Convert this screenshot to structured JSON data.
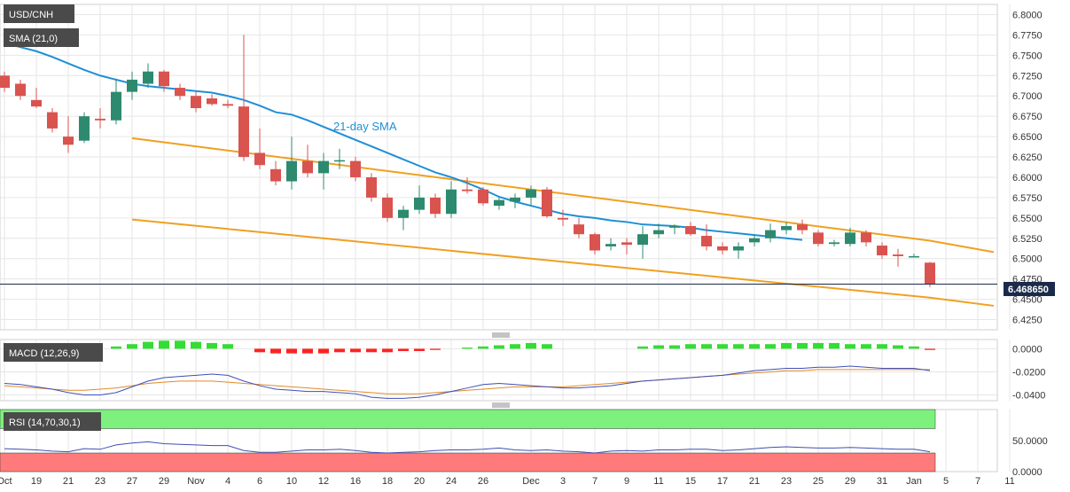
{
  "chart_data": {
    "type": "candlestick",
    "title": "USD/CNH",
    "last_price": "6.468650",
    "colors": {
      "up": "#2d8a6f",
      "down": "#d9534f",
      "sma": "#1f8fd6",
      "channel": "#f0a020",
      "macd_line": "#3f4fb5",
      "signal_line": "#e08a2a",
      "hist_pos": "#33dd33",
      "hist_neg": "#ff2222",
      "rsi_line": "#3f4fb5",
      "rsi_green": "#7ef07e",
      "rsi_red": "#ff7b7b",
      "grid": "#e6e6e6",
      "label_bg": "#4a4a4a",
      "price_bg": "#1b2a4a"
    },
    "price_panel": {
      "legend_symbol": "USD/CNH",
      "legend_sma": "SMA (21,0)",
      "annotation": "21-day SMA",
      "ylim": [
        6.4125,
        6.8125
      ],
      "y_ticks": [
        "6.8000",
        "6.7750",
        "6.7500",
        "6.7250",
        "6.7000",
        "6.6750",
        "6.6500",
        "6.6250",
        "6.6000",
        "6.5750",
        "6.5500",
        "6.5250",
        "6.5000",
        "6.4750",
        "6.4500",
        "6.4250"
      ],
      "candles": [
        {
          "o": 6.725,
          "h": 6.73,
          "l": 6.705,
          "c": 6.71
        },
        {
          "o": 6.715,
          "h": 6.72,
          "l": 6.695,
          "c": 6.7
        },
        {
          "o": 6.695,
          "h": 6.71,
          "l": 6.685,
          "c": 6.687
        },
        {
          "o": 6.68,
          "h": 6.685,
          "l": 6.655,
          "c": 6.66
        },
        {
          "o": 6.65,
          "h": 6.675,
          "l": 6.63,
          "c": 6.64
        },
        {
          "o": 6.645,
          "h": 6.68,
          "l": 6.642,
          "c": 6.675
        },
        {
          "o": 6.672,
          "h": 6.685,
          "l": 6.66,
          "c": 6.67
        },
        {
          "o": 6.67,
          "h": 6.72,
          "l": 6.665,
          "c": 6.705
        },
        {
          "o": 6.705,
          "h": 6.73,
          "l": 6.695,
          "c": 6.72
        },
        {
          "o": 6.715,
          "h": 6.74,
          "l": 6.71,
          "c": 6.73
        },
        {
          "o": 6.73,
          "h": 6.732,
          "l": 6.705,
          "c": 6.712
        },
        {
          "o": 6.71,
          "h": 6.715,
          "l": 6.695,
          "c": 6.7
        },
        {
          "o": 6.7,
          "h": 6.705,
          "l": 6.68,
          "c": 6.685
        },
        {
          "o": 6.697,
          "h": 6.702,
          "l": 6.688,
          "c": 6.69
        },
        {
          "o": 6.69,
          "h": 6.695,
          "l": 6.685,
          "c": 6.688
        },
        {
          "o": 6.687,
          "h": 6.775,
          "l": 6.62,
          "c": 6.625
        },
        {
          "o": 6.63,
          "h": 6.66,
          "l": 6.61,
          "c": 6.615
        },
        {
          "o": 6.61,
          "h": 6.62,
          "l": 6.59,
          "c": 6.595
        },
        {
          "o": 6.595,
          "h": 6.65,
          "l": 6.585,
          "c": 6.62
        },
        {
          "o": 6.62,
          "h": 6.64,
          "l": 6.6,
          "c": 6.605
        },
        {
          "o": 6.605,
          "h": 6.63,
          "l": 6.585,
          "c": 6.62
        },
        {
          "o": 6.62,
          "h": 6.635,
          "l": 6.61,
          "c": 6.621
        },
        {
          "o": 6.62,
          "h": 6.625,
          "l": 6.595,
          "c": 6.6
        },
        {
          "o": 6.6,
          "h": 6.605,
          "l": 6.57,
          "c": 6.575
        },
        {
          "o": 6.575,
          "h": 6.58,
          "l": 6.545,
          "c": 6.55
        },
        {
          "o": 6.55,
          "h": 6.565,
          "l": 6.535,
          "c": 6.56
        },
        {
          "o": 6.56,
          "h": 6.59,
          "l": 6.555,
          "c": 6.575
        },
        {
          "o": 6.575,
          "h": 6.58,
          "l": 6.55,
          "c": 6.555
        },
        {
          "o": 6.555,
          "h": 6.595,
          "l": 6.55,
          "c": 6.585
        },
        {
          "o": 6.585,
          "h": 6.6,
          "l": 6.58,
          "c": 6.583
        },
        {
          "o": 6.585,
          "h": 6.588,
          "l": 6.565,
          "c": 6.568
        },
        {
          "o": 6.565,
          "h": 6.575,
          "l": 6.56,
          "c": 6.572
        },
        {
          "o": 6.57,
          "h": 6.58,
          "l": 6.562,
          "c": 6.575
        },
        {
          "o": 6.575,
          "h": 6.59,
          "l": 6.565,
          "c": 6.585
        },
        {
          "o": 6.585,
          "h": 6.588,
          "l": 6.55,
          "c": 6.552
        },
        {
          "o": 6.55,
          "h": 6.56,
          "l": 6.54,
          "c": 6.548
        },
        {
          "o": 6.542,
          "h": 6.55,
          "l": 6.525,
          "c": 6.53
        },
        {
          "o": 6.53,
          "h": 6.532,
          "l": 6.505,
          "c": 6.51
        },
        {
          "o": 6.515,
          "h": 6.525,
          "l": 6.51,
          "c": 6.518
        },
        {
          "o": 6.52,
          "h": 6.525,
          "l": 6.505,
          "c": 6.517
        },
        {
          "o": 6.517,
          "h": 6.54,
          "l": 6.5,
          "c": 6.53
        },
        {
          "o": 6.53,
          "h": 6.543,
          "l": 6.525,
          "c": 6.535
        },
        {
          "o": 6.538,
          "h": 6.542,
          "l": 6.53,
          "c": 6.54
        },
        {
          "o": 6.54,
          "h": 6.545,
          "l": 6.528,
          "c": 6.53
        },
        {
          "o": 6.528,
          "h": 6.542,
          "l": 6.51,
          "c": 6.515
        },
        {
          "o": 6.515,
          "h": 6.52,
          "l": 6.505,
          "c": 6.51
        },
        {
          "o": 6.51,
          "h": 6.52,
          "l": 6.5,
          "c": 6.515
        },
        {
          "o": 6.52,
          "h": 6.53,
          "l": 6.515,
          "c": 6.525
        },
        {
          "o": 6.525,
          "h": 6.543,
          "l": 6.52,
          "c": 6.535
        },
        {
          "o": 6.535,
          "h": 6.545,
          "l": 6.53,
          "c": 6.54
        },
        {
          "o": 6.542,
          "h": 6.548,
          "l": 6.53,
          "c": 6.535
        },
        {
          "o": 6.532,
          "h": 6.535,
          "l": 6.515,
          "c": 6.518
        },
        {
          "o": 6.518,
          "h": 6.523,
          "l": 6.515,
          "c": 6.52
        },
        {
          "o": 6.518,
          "h": 6.538,
          "l": 6.515,
          "c": 6.532
        },
        {
          "o": 6.532,
          "h": 6.535,
          "l": 6.515,
          "c": 6.52
        },
        {
          "o": 6.516,
          "h": 6.52,
          "l": 6.5,
          "c": 6.504
        },
        {
          "o": 6.505,
          "h": 6.512,
          "l": 6.49,
          "c": 6.503
        },
        {
          "o": 6.503,
          "h": 6.506,
          "l": 6.502,
          "c": 6.503
        },
        {
          "o": 6.495,
          "h": 6.496,
          "l": 6.465,
          "c": 6.469
        }
      ],
      "sma": [
        6.765,
        6.76,
        6.755,
        6.748,
        6.74,
        6.732,
        6.725,
        6.72,
        6.715,
        6.712,
        6.71,
        6.708,
        6.706,
        6.704,
        6.7,
        6.695,
        6.688,
        6.68,
        6.677,
        6.67,
        6.662,
        6.654,
        6.646,
        6.638,
        6.63,
        6.622,
        6.614,
        6.606,
        6.6,
        6.593,
        6.585,
        6.576,
        6.57,
        6.565,
        6.56,
        6.555,
        6.552,
        6.55,
        6.547,
        6.545,
        6.542,
        6.541,
        6.54,
        6.538,
        6.535,
        6.533,
        6.531,
        6.529,
        6.527,
        6.525,
        6.523
      ],
      "channel_upper": [
        [
          6.648,
          8
        ],
        [
          6.522,
          58
        ],
        [
          6.508,
          62
        ]
      ],
      "channel_lower": [
        [
          6.548,
          8
        ],
        [
          6.452,
          58
        ],
        [
          6.442,
          62
        ]
      ],
      "x_ticks": [
        {
          "label": "Oct",
          "i": 0
        },
        {
          "label": "19",
          "i": 2
        },
        {
          "label": "21",
          "i": 4
        },
        {
          "label": "23",
          "i": 6
        },
        {
          "label": "27",
          "i": 8
        },
        {
          "label": "29",
          "i": 10
        },
        {
          "label": "Nov",
          "i": 12
        },
        {
          "label": "4",
          "i": 14
        },
        {
          "label": "6",
          "i": 16
        },
        {
          "label": "10",
          "i": 18
        },
        {
          "label": "12",
          "i": 20
        },
        {
          "label": "16",
          "i": 22
        },
        {
          "label": "18",
          "i": 24
        },
        {
          "label": "20",
          "i": 26
        },
        {
          "label": "24",
          "i": 28
        },
        {
          "label": "26",
          "i": 30
        },
        {
          "label": "Dec",
          "i": 33
        },
        {
          "label": "3",
          "i": 35
        },
        {
          "label": "7",
          "i": 37
        },
        {
          "label": "9",
          "i": 39
        },
        {
          "label": "11",
          "i": 41
        },
        {
          "label": "15",
          "i": 43
        },
        {
          "label": "17",
          "i": 45
        },
        {
          "label": "21",
          "i": 47
        },
        {
          "label": "23",
          "i": 49
        },
        {
          "label": "25",
          "i": 51
        },
        {
          "label": "29",
          "i": 53
        },
        {
          "label": "31",
          "i": 55
        },
        {
          "label": "Jan",
          "i": 57
        },
        {
          "label": "5",
          "i": 59
        },
        {
          "label": "7",
          "i": 61
        },
        {
          "label": "11",
          "i": 63
        }
      ]
    },
    "macd_panel": {
      "legend": "MACD (12,26,9)",
      "ylim": [
        -0.045,
        0.008
      ],
      "y_ticks": [
        "0.0000",
        "-0.0200",
        "-0.0400"
      ],
      "hist": [
        0.0,
        0.0,
        0.0,
        0.0,
        0.0,
        0.0,
        0.0,
        0.002,
        0.004,
        0.006,
        0.007,
        0.007,
        0.006,
        0.005,
        0.004,
        0.0,
        -0.003,
        -0.004,
        -0.004,
        -0.004,
        -0.004,
        -0.003,
        -0.003,
        -0.003,
        -0.003,
        -0.002,
        -0.002,
        -0.001,
        0.0,
        0.001,
        0.002,
        0.003,
        0.004,
        0.005,
        0.004,
        0.0,
        0.0,
        0.0,
        0.0,
        0.0,
        0.002,
        0.003,
        0.003,
        0.004,
        0.004,
        0.004,
        0.004,
        0.004,
        0.004,
        0.005,
        0.005,
        0.005,
        0.005,
        0.004,
        0.004,
        0.004,
        0.003,
        0.002,
        -0.001
      ],
      "macd": [
        -0.03,
        -0.031,
        -0.033,
        -0.035,
        -0.038,
        -0.04,
        -0.04,
        -0.038,
        -0.033,
        -0.028,
        -0.025,
        -0.024,
        -0.023,
        -0.022,
        -0.023,
        -0.028,
        -0.032,
        -0.035,
        -0.036,
        -0.037,
        -0.037,
        -0.038,
        -0.039,
        -0.042,
        -0.043,
        -0.043,
        -0.042,
        -0.04,
        -0.037,
        -0.034,
        -0.031,
        -0.03,
        -0.031,
        -0.032,
        -0.033,
        -0.034,
        -0.034,
        -0.033,
        -0.032,
        -0.03,
        -0.028,
        -0.027,
        -0.026,
        -0.025,
        -0.024,
        -0.023,
        -0.021,
        -0.019,
        -0.018,
        -0.017,
        -0.017,
        -0.016,
        -0.016,
        -0.015,
        -0.016,
        -0.017,
        -0.017,
        -0.017,
        -0.019
      ],
      "signal": [
        -0.032,
        -0.033,
        -0.034,
        -0.035,
        -0.036,
        -0.036,
        -0.035,
        -0.034,
        -0.032,
        -0.03,
        -0.029,
        -0.028,
        -0.028,
        -0.028,
        -0.029,
        -0.03,
        -0.031,
        -0.032,
        -0.033,
        -0.034,
        -0.035,
        -0.036,
        -0.037,
        -0.038,
        -0.039,
        -0.039,
        -0.039,
        -0.038,
        -0.037,
        -0.036,
        -0.035,
        -0.034,
        -0.033,
        -0.033,
        -0.033,
        -0.033,
        -0.032,
        -0.031,
        -0.03,
        -0.029,
        -0.028,
        -0.027,
        -0.026,
        -0.025,
        -0.024,
        -0.023,
        -0.022,
        -0.021,
        -0.02,
        -0.019,
        -0.019,
        -0.018,
        -0.018,
        -0.018,
        -0.018,
        -0.018,
        -0.018,
        -0.018,
        -0.018
      ]
    },
    "rsi_panel": {
      "legend": "RSI (14,70,30,1)",
      "ylim": [
        0,
        100
      ],
      "y_ticks": [
        "50.0000",
        "0.0000"
      ],
      "rsi": [
        37,
        36,
        35,
        33,
        32,
        37,
        36,
        43,
        46,
        48,
        45,
        44,
        43,
        42,
        42,
        34,
        31,
        31,
        33,
        35,
        35,
        36,
        34,
        31,
        30,
        31,
        32,
        34,
        35,
        35,
        36,
        38,
        35,
        34,
        35,
        33,
        32,
        30,
        33,
        34,
        33,
        35,
        35,
        36,
        36,
        34,
        35,
        37,
        39,
        40,
        39,
        38,
        38,
        39,
        38,
        37,
        36,
        36,
        32
      ]
    }
  }
}
